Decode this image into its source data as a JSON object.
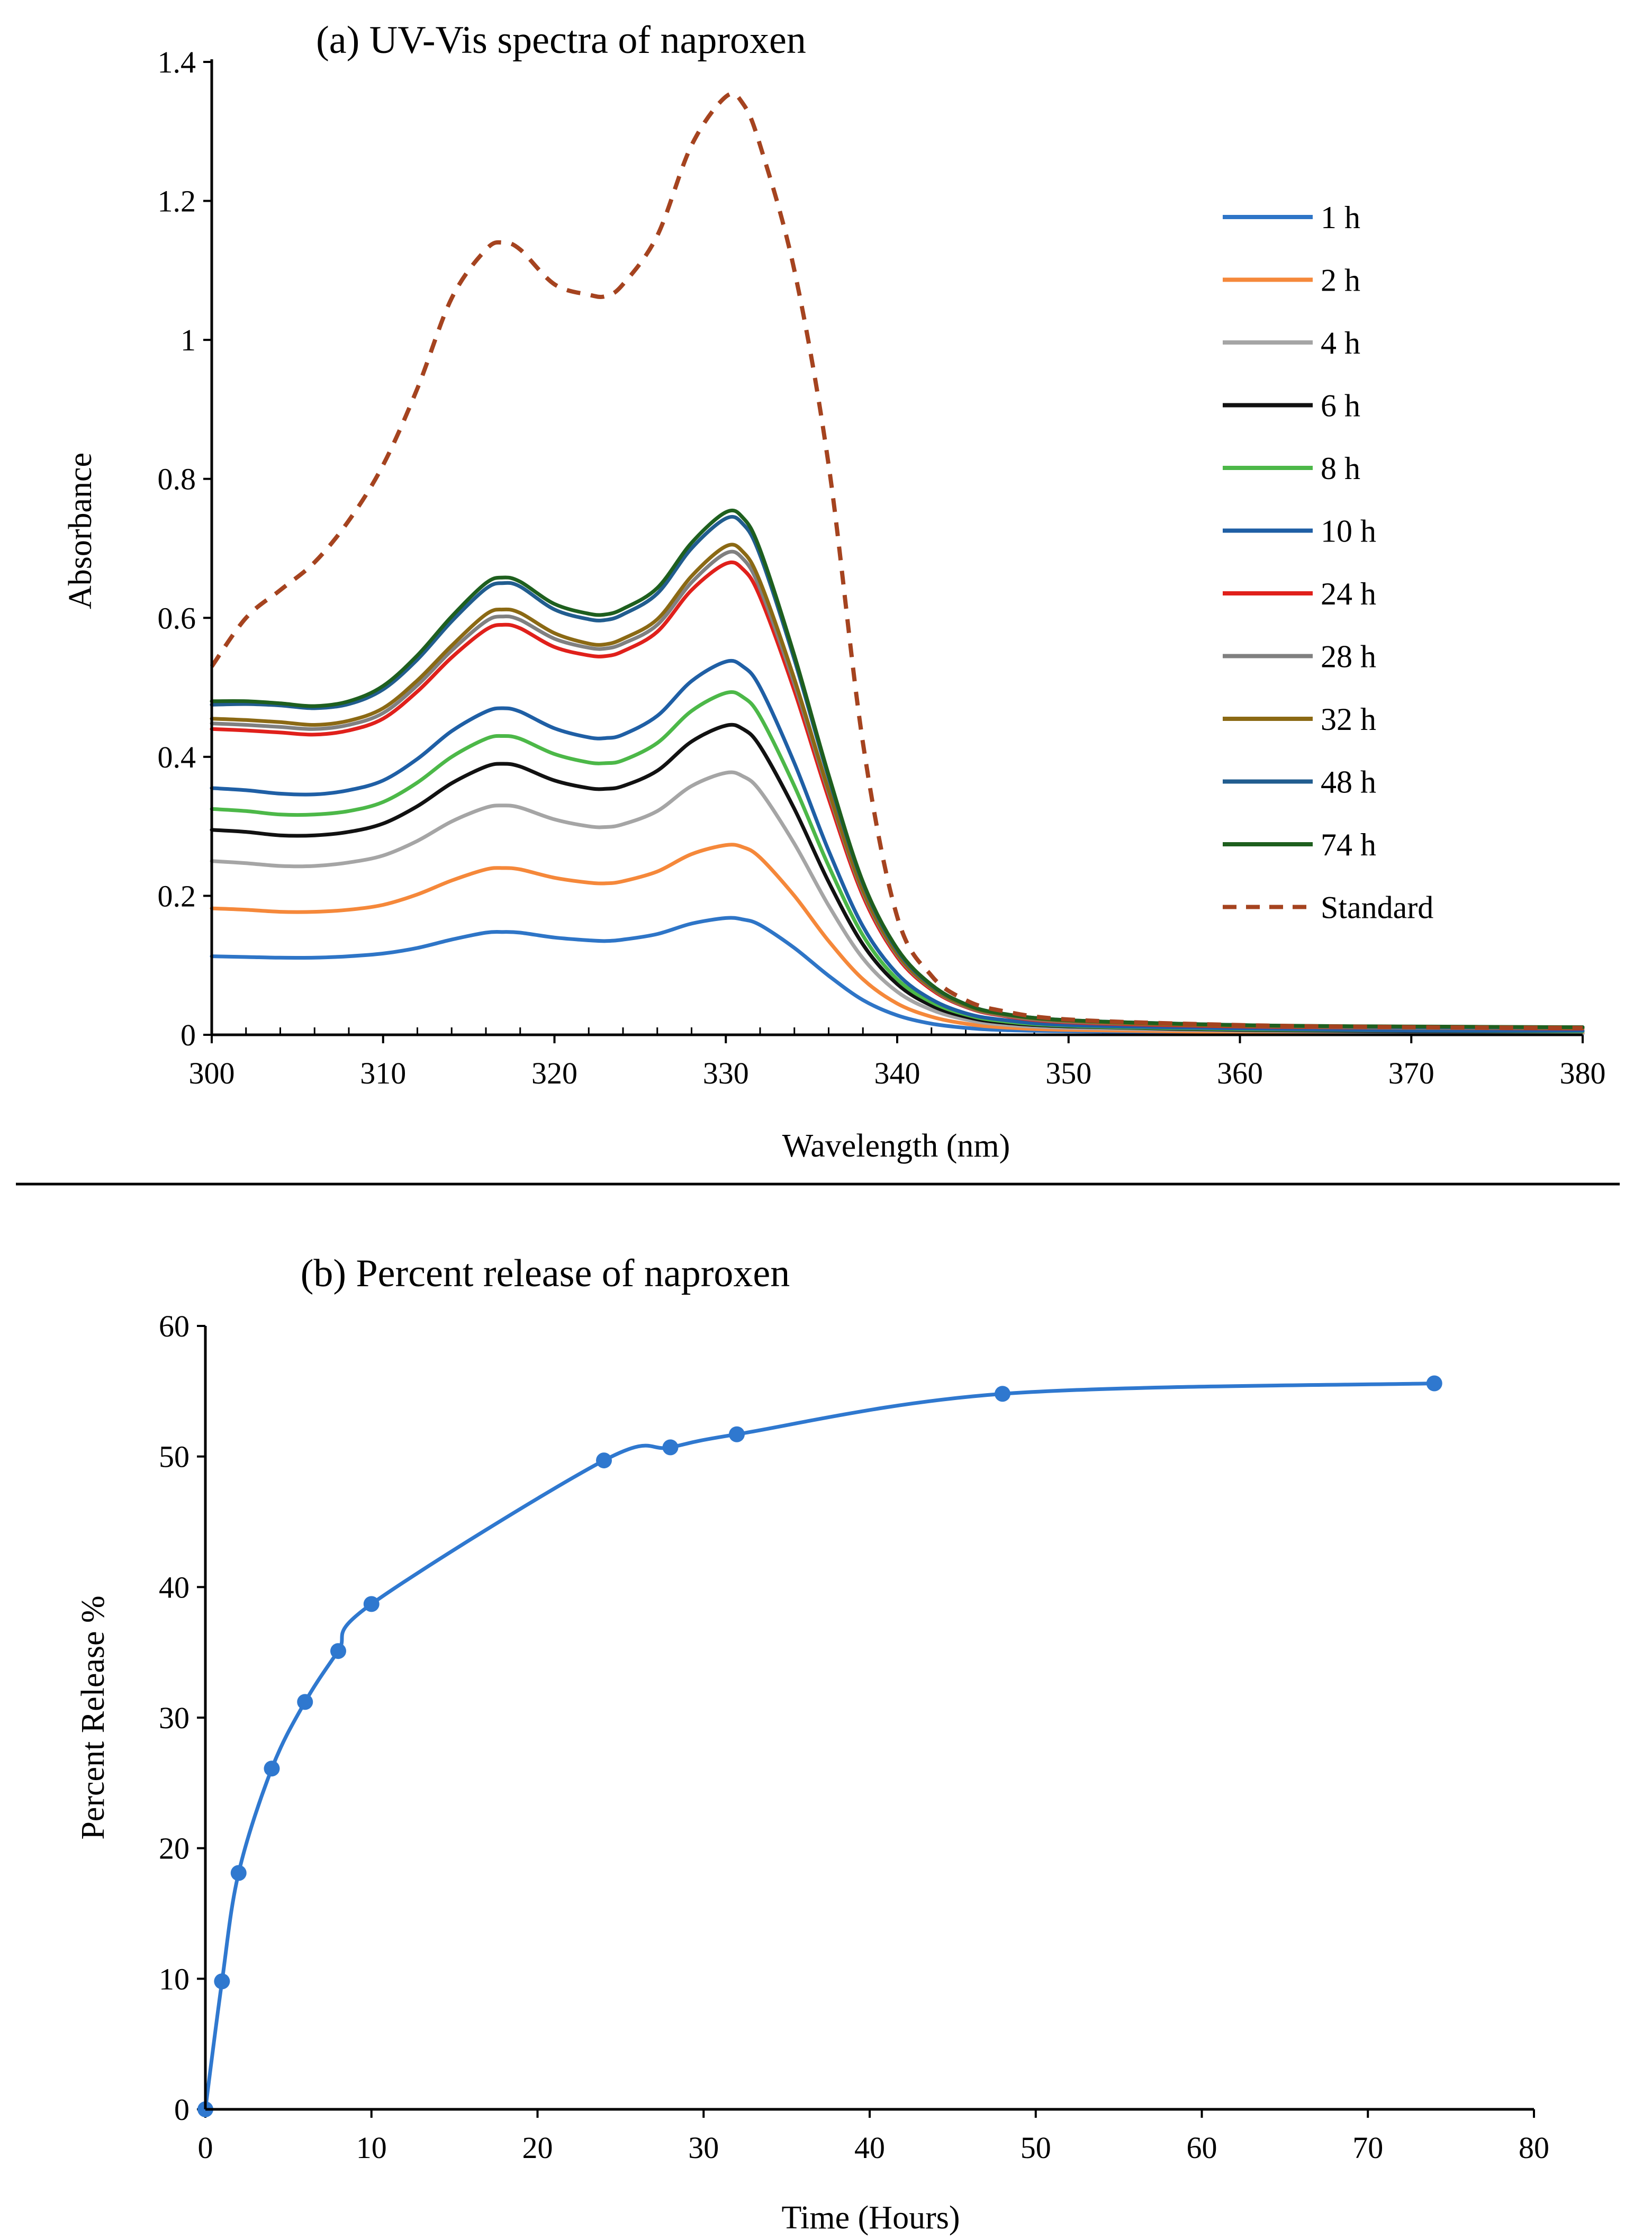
{
  "chart_data": [
    {
      "type": "line",
      "title": "(a) UV-Vis spectra of naproxen",
      "xlabel": "Wavelength (nm)",
      "ylabel": "Absorbance",
      "xlim": [
        300,
        380
      ],
      "ylim": [
        0,
        1.4
      ],
      "xticks": [
        300,
        310,
        320,
        330,
        340,
        350,
        360,
        370,
        380
      ],
      "yticks": [
        0,
        0.2,
        0.4,
        0.6,
        0.8,
        1,
        1.2,
        1.4
      ],
      "xtick_labels": [
        "300",
        "310",
        "320",
        "330",
        "340",
        "350",
        "360",
        "370",
        "380"
      ],
      "ytick_labels": [
        "0",
        "0.2",
        "0.4",
        "0.6",
        "0.8",
        "1",
        "1.2",
        "1.4"
      ],
      "legend_position": "right",
      "x": [
        300,
        302,
        304,
        306,
        308,
        310,
        312,
        314,
        316,
        317,
        318,
        320,
        322,
        323,
        324,
        326,
        328,
        330,
        331,
        332,
        334,
        336,
        338,
        340,
        342,
        344,
        346,
        350,
        360,
        370,
        380
      ],
      "series": [
        {
          "name": "1 h",
          "color": "#2e75c7",
          "dash": "none",
          "values": [
            0.113,
            0.112,
            0.111,
            0.111,
            0.113,
            0.117,
            0.125,
            0.137,
            0.147,
            0.148,
            0.147,
            0.14,
            0.136,
            0.135,
            0.137,
            0.145,
            0.16,
            0.168,
            0.166,
            0.158,
            0.125,
            0.085,
            0.05,
            0.028,
            0.016,
            0.01,
            0.007,
            0.005,
            0.003,
            0.002,
            0.002
          ]
        },
        {
          "name": "2 h",
          "color": "#f5883a",
          "dash": "none",
          "values": [
            0.182,
            0.18,
            0.177,
            0.177,
            0.18,
            0.187,
            0.202,
            0.222,
            0.238,
            0.24,
            0.238,
            0.226,
            0.219,
            0.218,
            0.221,
            0.235,
            0.26,
            0.273,
            0.27,
            0.255,
            0.2,
            0.135,
            0.08,
            0.045,
            0.026,
            0.016,
            0.011,
            0.007,
            0.004,
            0.003,
            0.003
          ]
        },
        {
          "name": "4 h",
          "color": "#a5a5a5",
          "dash": "none",
          "values": [
            0.25,
            0.247,
            0.243,
            0.243,
            0.248,
            0.258,
            0.279,
            0.307,
            0.327,
            0.33,
            0.327,
            0.31,
            0.3,
            0.299,
            0.303,
            0.322,
            0.358,
            0.377,
            0.372,
            0.351,
            0.275,
            0.186,
            0.11,
            0.062,
            0.036,
            0.022,
            0.015,
            0.01,
            0.006,
            0.004,
            0.004
          ]
        },
        {
          "name": "6 h",
          "color": "#111111",
          "dash": "none",
          "values": [
            0.295,
            0.292,
            0.287,
            0.287,
            0.292,
            0.304,
            0.329,
            0.362,
            0.386,
            0.39,
            0.386,
            0.366,
            0.355,
            0.354,
            0.358,
            0.38,
            0.422,
            0.445,
            0.44,
            0.415,
            0.325,
            0.22,
            0.13,
            0.073,
            0.042,
            0.026,
            0.018,
            0.012,
            0.007,
            0.005,
            0.005
          ]
        },
        {
          "name": "8 h",
          "color": "#4cb848",
          "dash": "none",
          "values": [
            0.325,
            0.322,
            0.317,
            0.317,
            0.322,
            0.335,
            0.363,
            0.4,
            0.426,
            0.43,
            0.426,
            0.404,
            0.392,
            0.391,
            0.395,
            0.42,
            0.466,
            0.492,
            0.486,
            0.458,
            0.358,
            0.243,
            0.143,
            0.08,
            0.047,
            0.029,
            0.02,
            0.013,
            0.008,
            0.006,
            0.005
          ]
        },
        {
          "name": "10 h",
          "color": "#1f5fa5",
          "dash": "none",
          "values": [
            0.355,
            0.352,
            0.347,
            0.346,
            0.352,
            0.366,
            0.397,
            0.437,
            0.465,
            0.47,
            0.465,
            0.441,
            0.428,
            0.427,
            0.432,
            0.459,
            0.509,
            0.537,
            0.53,
            0.5,
            0.391,
            0.265,
            0.156,
            0.088,
            0.051,
            0.031,
            0.022,
            0.014,
            0.009,
            0.006,
            0.006
          ]
        },
        {
          "name": "24 h",
          "color": "#e0201b",
          "dash": "none",
          "values": [
            0.44,
            0.438,
            0.435,
            0.432,
            0.438,
            0.455,
            0.494,
            0.543,
            0.583,
            0.59,
            0.585,
            0.558,
            0.546,
            0.545,
            0.552,
            0.58,
            0.64,
            0.678,
            0.67,
            0.63,
            0.495,
            0.34,
            0.2,
            0.112,
            0.065,
            0.04,
            0.028,
            0.018,
            0.012,
            0.01,
            0.009
          ]
        },
        {
          "name": "28 h",
          "color": "#808080",
          "dash": "none",
          "values": [
            0.448,
            0.446,
            0.443,
            0.44,
            0.446,
            0.463,
            0.503,
            0.553,
            0.595,
            0.602,
            0.597,
            0.57,
            0.557,
            0.556,
            0.563,
            0.59,
            0.651,
            0.693,
            0.685,
            0.642,
            0.505,
            0.348,
            0.205,
            0.115,
            0.067,
            0.041,
            0.029,
            0.019,
            0.013,
            0.01,
            0.01
          ]
        },
        {
          "name": "32 h",
          "color": "#8b6914",
          "dash": "none",
          "values": [
            0.455,
            0.453,
            0.45,
            0.446,
            0.452,
            0.47,
            0.51,
            0.56,
            0.605,
            0.612,
            0.607,
            0.578,
            0.563,
            0.562,
            0.57,
            0.598,
            0.66,
            0.703,
            0.695,
            0.652,
            0.512,
            0.352,
            0.208,
            0.117,
            0.068,
            0.042,
            0.03,
            0.02,
            0.013,
            0.011,
            0.01
          ]
        },
        {
          "name": "48 h",
          "color": "#215d8f",
          "dash": "none",
          "values": [
            0.475,
            0.476,
            0.474,
            0.47,
            0.476,
            0.497,
            0.54,
            0.595,
            0.642,
            0.65,
            0.645,
            0.612,
            0.598,
            0.597,
            0.605,
            0.635,
            0.7,
            0.743,
            0.735,
            0.69,
            0.54,
            0.37,
            0.218,
            0.122,
            0.071,
            0.044,
            0.031,
            0.021,
            0.014,
            0.011,
            0.011
          ]
        },
        {
          "name": "74 h",
          "color": "#1e5f1e",
          "dash": "none",
          "values": [
            0.48,
            0.48,
            0.477,
            0.473,
            0.48,
            0.502,
            0.546,
            0.602,
            0.65,
            0.658,
            0.652,
            0.62,
            0.606,
            0.605,
            0.613,
            0.643,
            0.708,
            0.752,
            0.744,
            0.698,
            0.546,
            0.374,
            0.22,
            0.124,
            0.072,
            0.044,
            0.031,
            0.021,
            0.014,
            0.012,
            0.011
          ]
        },
        {
          "name": "Standard",
          "color": "#a5431f",
          "dash": "dashed",
          "values": [
            0.53,
            0.6,
            0.64,
            0.68,
            0.74,
            0.82,
            0.93,
            1.06,
            1.13,
            1.14,
            1.13,
            1.08,
            1.065,
            1.063,
            1.08,
            1.15,
            1.28,
            1.35,
            1.34,
            1.28,
            1.1,
            0.82,
            0.42,
            0.17,
            0.085,
            0.05,
            0.035,
            0.022,
            0.014,
            0.011,
            0.01
          ]
        }
      ]
    },
    {
      "type": "line",
      "title": "(b) Percent release of naproxen",
      "xlabel": "Time (Hours)",
      "ylabel": "Percent Release %",
      "xlim": [
        0,
        80
      ],
      "ylim": [
        0,
        60
      ],
      "xticks": [
        0,
        10,
        20,
        30,
        40,
        50,
        60,
        70,
        80
      ],
      "yticks": [
        0,
        10,
        20,
        30,
        40,
        50,
        60
      ],
      "xtick_labels": [
        "0",
        "10",
        "20",
        "30",
        "40",
        "50",
        "60",
        "70",
        "80"
      ],
      "ytick_labels": [
        "0",
        "10",
        "20",
        "30",
        "40",
        "50",
        "60"
      ],
      "markers": true,
      "series": [
        {
          "name": "Percent release",
          "color": "#2f78cf",
          "x": [
            0,
            1,
            2,
            4,
            6,
            8,
            10,
            24,
            28,
            32,
            48,
            74
          ],
          "values": [
            0,
            9.8,
            18.1,
            26.1,
            31.2,
            35.1,
            38.7,
            49.7,
            50.7,
            51.7,
            54.8,
            55.6
          ]
        }
      ]
    }
  ]
}
